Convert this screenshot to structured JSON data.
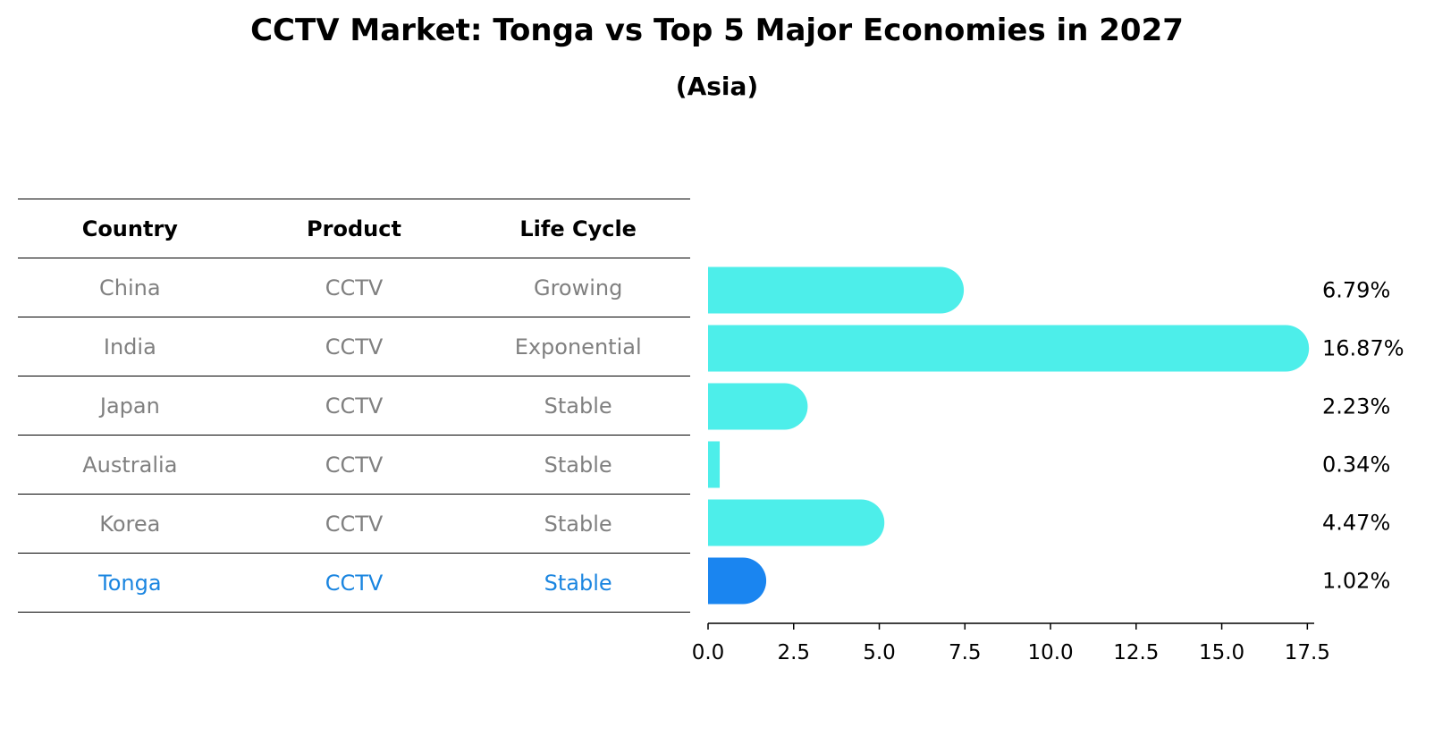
{
  "title": "CCTV Market: Tonga vs Top 5 Major Economies in 2027",
  "subtitle": "(Asia)",
  "table": {
    "headers": [
      "Country",
      "Product",
      "Life Cycle"
    ],
    "rows": [
      {
        "country": "China",
        "product": "CCTV",
        "life_cycle": "Growing"
      },
      {
        "country": "India",
        "product": "CCTV",
        "life_cycle": "Exponential"
      },
      {
        "country": "Japan",
        "product": "CCTV",
        "life_cycle": "Stable"
      },
      {
        "country": "Australia",
        "product": "CCTV",
        "life_cycle": "Stable"
      },
      {
        "country": "Korea",
        "product": "CCTV",
        "life_cycle": "Stable"
      },
      {
        "country": "Tonga",
        "product": "CCTV",
        "life_cycle": "Stable"
      }
    ]
  },
  "chart_data": {
    "type": "bar",
    "orientation": "horizontal",
    "categories": [
      "China",
      "India",
      "Japan",
      "Australia",
      "Korea",
      "Tonga"
    ],
    "values": [
      6.79,
      16.87,
      2.23,
      0.34,
      4.47,
      1.02
    ],
    "value_labels": [
      "6.79%",
      "16.87%",
      "2.23%",
      "0.34%",
      "4.47%",
      "1.02%"
    ],
    "xlim": [
      0,
      17.7
    ],
    "xticks": [
      0.0,
      2.5,
      5.0,
      7.5,
      10.0,
      12.5,
      15.0,
      17.5
    ],
    "xtick_labels": [
      "0.0",
      "2.5",
      "5.0",
      "7.5",
      "10.0",
      "12.5",
      "15.0",
      "17.5"
    ],
    "highlight": "Tonga",
    "colors": {
      "default": "#4deeea",
      "highlight": "#1a85f0"
    }
  }
}
